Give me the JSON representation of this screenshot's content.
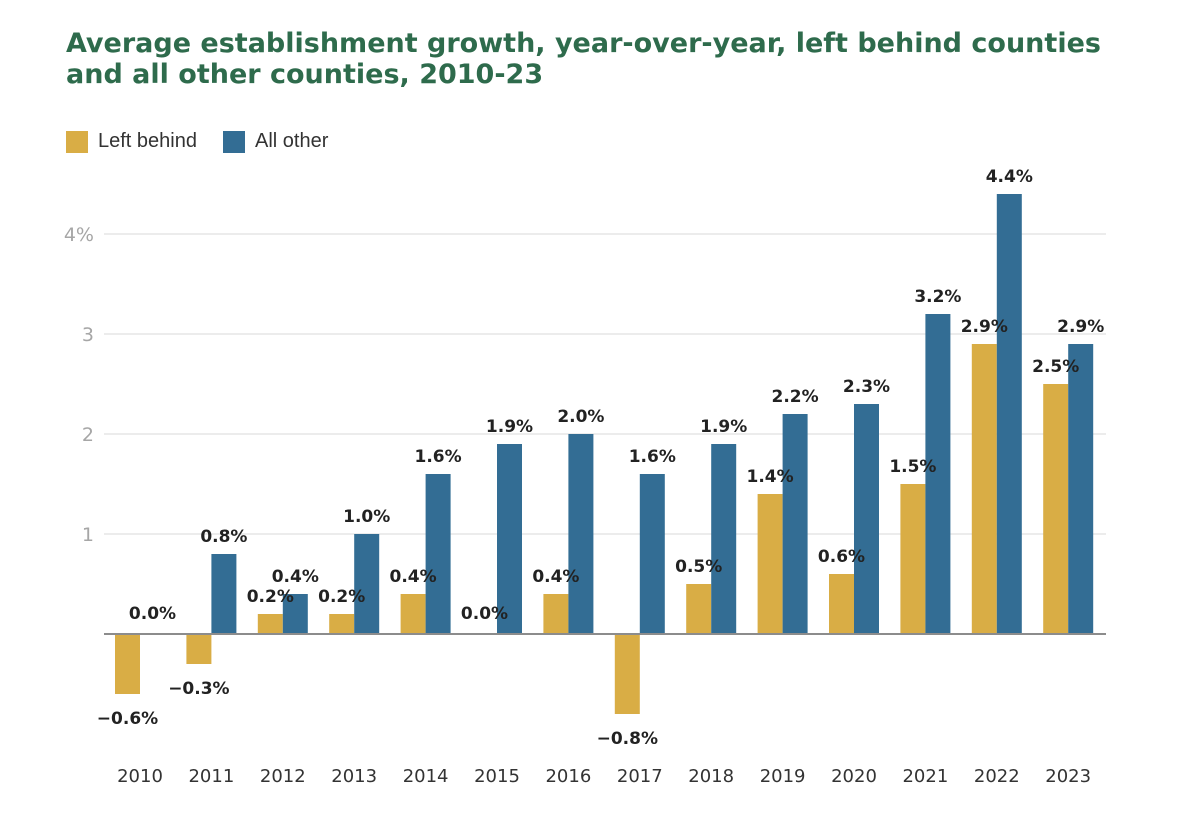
{
  "chart_data": {
    "type": "bar",
    "title": "Average establishment growth, year-over-year, left behind counties and all other counties, 2010-23",
    "categories": [
      "2010",
      "2011",
      "2012",
      "2013",
      "2014",
      "2015",
      "2016",
      "2017",
      "2018",
      "2019",
      "2020",
      "2021",
      "2022",
      "2023"
    ],
    "series": [
      {
        "name": "Left behind",
        "color": "#d9ad45",
        "values": [
          -0.6,
          -0.3,
          0.2,
          0.2,
          0.4,
          0.0,
          0.4,
          -0.8,
          0.5,
          1.4,
          0.6,
          1.5,
          2.9,
          2.5
        ],
        "labels": [
          "−0.6%",
          "−0.3%",
          "0.2%",
          "0.2%",
          "0.4%",
          "0.0%",
          "0.4%",
          "−0.8%",
          "0.5%",
          "1.4%",
          "0.6%",
          "1.5%",
          "2.9%",
          "2.5%"
        ]
      },
      {
        "name": "All other",
        "color": "#336d94",
        "values": [
          0.0,
          0.8,
          0.4,
          1.0,
          1.6,
          1.9,
          2.0,
          1.6,
          1.9,
          2.2,
          2.3,
          3.2,
          4.4,
          2.9
        ],
        "labels": [
          "0.0%",
          "0.8%",
          "0.4%",
          "1.0%",
          "1.6%",
          "1.9%",
          "2.0%",
          "1.6%",
          "1.9%",
          "2.2%",
          "2.3%",
          "3.2%",
          "4.4%",
          "2.9%"
        ]
      }
    ],
    "yticks": [
      1,
      2,
      3,
      4
    ],
    "ytick_labels": [
      "1",
      "2",
      "3",
      "4%"
    ],
    "ylim": [
      -1.1,
      4.6
    ],
    "grid": true,
    "legend": "top-left",
    "title_color": "#2e6b4c"
  }
}
